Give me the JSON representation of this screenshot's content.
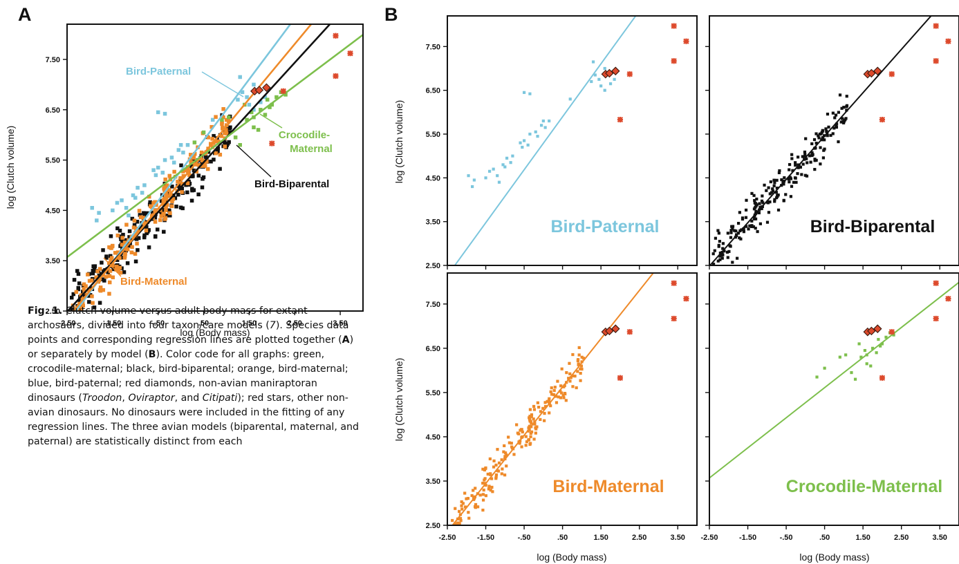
{
  "colors": {
    "crocodile_maternal": "#7dbf4c",
    "bird_biparental": "#111111",
    "bird_maternal": "#ee8a2a",
    "bird_paternal": "#7cc6dd",
    "dinosaur": "#dd4a2c"
  },
  "panel_letters": {
    "a": "A",
    "b": "B"
  },
  "caption": {
    "fig_label": "Fig. 1.",
    "segments": [
      {
        "t": " Clutch volume versus adult body mass for extant archosaurs, divided into four taxon/care models (",
        "s": "n"
      },
      {
        "t": "7",
        "s": "i"
      },
      {
        "t": "). Species data points and corresponding regression lines are plotted together (",
        "s": "n"
      },
      {
        "t": "A",
        "s": "b"
      },
      {
        "t": ") or separately by model (",
        "s": "n"
      },
      {
        "t": "B",
        "s": "b"
      },
      {
        "t": "). Color code for all graphs: green, crocodile-maternal; black, bird-biparental; orange, bird-maternal; blue, bird-paternal; red diamonds, non-avian maniraptoran dinosaurs (",
        "s": "n"
      },
      {
        "t": "Troodon",
        "s": "i"
      },
      {
        "t": ", ",
        "s": "n"
      },
      {
        "t": "Oviraptor",
        "s": "i"
      },
      {
        "t": ", and ",
        "s": "n"
      },
      {
        "t": "Citipati",
        "s": "i"
      },
      {
        "t": "); red stars, other non-avian dinosaurs. No dinosaurs were included in the fitting of any regression lines. The three avian models (biparental, maternal, and paternal) are statistically distinct from each",
        "s": "n"
      }
    ]
  },
  "chart_data": [
    {
      "id": "A",
      "type": "scatter",
      "xlabel": "log (Body mass)",
      "ylabel": "log (Clutch volume)",
      "xlim": [
        -2.5,
        4.0
      ],
      "ylim": [
        2.5,
        8.2
      ],
      "xticks": [
        "-2.50",
        "-1.50",
        "-.50",
        ".50",
        "1.50",
        "2.50",
        "3.50"
      ],
      "xtick_values": [
        -2.5,
        -1.5,
        -0.5,
        0.5,
        1.5,
        2.5,
        3.5
      ],
      "yticks": [
        "2.50",
        "3.50",
        "4.50",
        "5.50",
        "6.50",
        "7.50"
      ],
      "ytick_values": [
        2.5,
        3.5,
        4.5,
        5.5,
        6.5,
        7.5
      ],
      "series": [
        {
          "name": "Bird-Paternal",
          "intercept": 5.29,
          "slope": 1.21,
          "points": "paternal"
        },
        {
          "name": "Bird-Biparental",
          "intercept": 4.96,
          "slope": 0.99,
          "points": "biparental"
        },
        {
          "name": "Bird-Maternal",
          "intercept": 5.08,
          "slope": 1.09,
          "points": "maternal"
        },
        {
          "name": "Crocodile-Maternal",
          "intercept": 5.27,
          "slope": 0.68,
          "points": "crocodile"
        }
      ],
      "line_labels": [
        {
          "text": "Bird-Paternal",
          "series": 0
        },
        {
          "text": "Bird-Biparental",
          "series": 1
        },
        {
          "text": "Bird-Maternal",
          "series": 2
        },
        {
          "text": "Crocodile-",
          "series": 3
        },
        {
          "text": "Maternal",
          "series": 3
        }
      ]
    },
    {
      "id": "B1",
      "type": "scatter",
      "ylabel": "log (Clutch volume)",
      "xlim": [
        -2.5,
        4.0
      ],
      "ylim": [
        2.5,
        8.2
      ],
      "yticks": [
        "2.50",
        "3.50",
        "4.50",
        "5.50",
        "6.50",
        "7.50"
      ],
      "series": [
        {
          "name": "Bird-Paternal",
          "intercept": 5.29,
          "slope": 1.21,
          "points": "paternal"
        }
      ]
    },
    {
      "id": "B2",
      "type": "scatter",
      "xlim": [
        -2.5,
        4.0
      ],
      "ylim": [
        2.5,
        8.2
      ],
      "series": [
        {
          "name": "Bird-Biparental",
          "intercept": 4.96,
          "slope": 0.99,
          "points": "biparental"
        }
      ]
    },
    {
      "id": "B3",
      "type": "scatter",
      "xlabel": "log (Body mass)",
      "ylabel": "log (Clutch volume)",
      "xlim": [
        -2.5,
        4.0
      ],
      "ylim": [
        2.5,
        8.2
      ],
      "xticks": [
        "-2.50",
        "-1.50",
        "-.50",
        ".50",
        "1.50",
        "2.50",
        "3.50"
      ],
      "yticks": [
        "2.50",
        "3.50",
        "4.50",
        "5.50",
        "6.50",
        "7.50"
      ],
      "series": [
        {
          "name": "Bird-Maternal",
          "intercept": 5.08,
          "slope": 1.09,
          "points": "maternal"
        }
      ]
    },
    {
      "id": "B4",
      "type": "scatter",
      "xlabel": "log (Body mass)",
      "xlim": [
        -2.5,
        4.0
      ],
      "ylim": [
        2.5,
        8.2
      ],
      "xticks": [
        "-2.50",
        "-1.50",
        "-.50",
        ".50",
        "1.50",
        "2.50",
        "3.50"
      ],
      "series": [
        {
          "name": "Crocodile-Maternal",
          "intercept": 5.27,
          "slope": 0.68,
          "points": "crocodile"
        }
      ]
    }
  ],
  "dinosaurs": {
    "maniraptoran_diamonds": [
      [
        1.62,
        6.87
      ],
      [
        1.72,
        6.89
      ],
      [
        1.88,
        6.94
      ]
    ],
    "other_stars": [
      [
        3.4,
        7.97
      ],
      [
        3.4,
        7.17
      ],
      [
        3.72,
        7.62
      ],
      [
        2.25,
        6.87
      ],
      [
        2.0,
        5.83
      ]
    ]
  },
  "point_clouds": {
    "paternal": [
      [
        -1.95,
        4.55
      ],
      [
        -1.8,
        4.45
      ],
      [
        -1.85,
        4.3
      ],
      [
        -1.5,
        4.5
      ],
      [
        -1.4,
        4.65
      ],
      [
        -1.3,
        4.7
      ],
      [
        -1.2,
        4.55
      ],
      [
        -1.15,
        4.4
      ],
      [
        -1.05,
        4.8
      ],
      [
        -1.0,
        4.75
      ],
      [
        -0.95,
        4.95
      ],
      [
        -0.85,
        4.85
      ],
      [
        -0.8,
        5.0
      ],
      [
        -0.6,
        5.3
      ],
      [
        -0.55,
        5.2
      ],
      [
        -0.5,
        5.35
      ],
      [
        -0.4,
        5.25
      ],
      [
        -0.35,
        5.5
      ],
      [
        -0.2,
        5.55
      ],
      [
        -0.15,
        5.45
      ],
      [
        -0.05,
        5.7
      ],
      [
        0.0,
        5.8
      ],
      [
        0.05,
        5.65
      ],
      [
        0.15,
        5.8
      ],
      [
        -0.5,
        6.45
      ],
      [
        -0.35,
        6.42
      ],
      [
        0.7,
        6.3
      ],
      [
        1.25,
        6.7
      ],
      [
        1.35,
        6.85
      ],
      [
        1.45,
        6.75
      ],
      [
        1.5,
        6.6
      ],
      [
        1.6,
        6.5
      ],
      [
        1.75,
        6.65
      ],
      [
        1.3,
        7.15
      ],
      [
        1.6,
        7.0
      ],
      [
        1.85,
        6.75
      ]
    ],
    "crocodile": [
      [
        0.3,
        5.85
      ],
      [
        0.5,
        6.05
      ],
      [
        0.9,
        6.3
      ],
      [
        1.05,
        6.35
      ],
      [
        1.2,
        5.95
      ],
      [
        1.3,
        5.8
      ],
      [
        1.45,
        6.3
      ],
      [
        1.55,
        6.45
      ],
      [
        1.6,
        6.15
      ],
      [
        1.75,
        6.5
      ],
      [
        1.85,
        6.4
      ],
      [
        1.9,
        6.7
      ],
      [
        2.0,
        6.6
      ],
      [
        2.1,
        6.75
      ],
      [
        2.2,
        6.85
      ],
      [
        1.6,
        6.35
      ],
      [
        1.4,
        6.6
      ],
      [
        1.95,
        6.55
      ],
      [
        1.7,
        6.1
      ],
      [
        2.3,
        6.8
      ]
    ],
    "biparental": {
      "n": 230,
      "xmin": -2.4,
      "xmax": 1.1,
      "jitter": 0.34,
      "seed": 11
    },
    "maternal": {
      "n": 210,
      "xmin": -2.5,
      "xmax": 1.05,
      "jitter": 0.3,
      "seed": 29
    }
  },
  "big_labels": {
    "b1": "Bird-Paternal",
    "b2": "Bird-Biparental",
    "b3": "Bird-Maternal",
    "b4": "Crocodile-Maternal"
  }
}
